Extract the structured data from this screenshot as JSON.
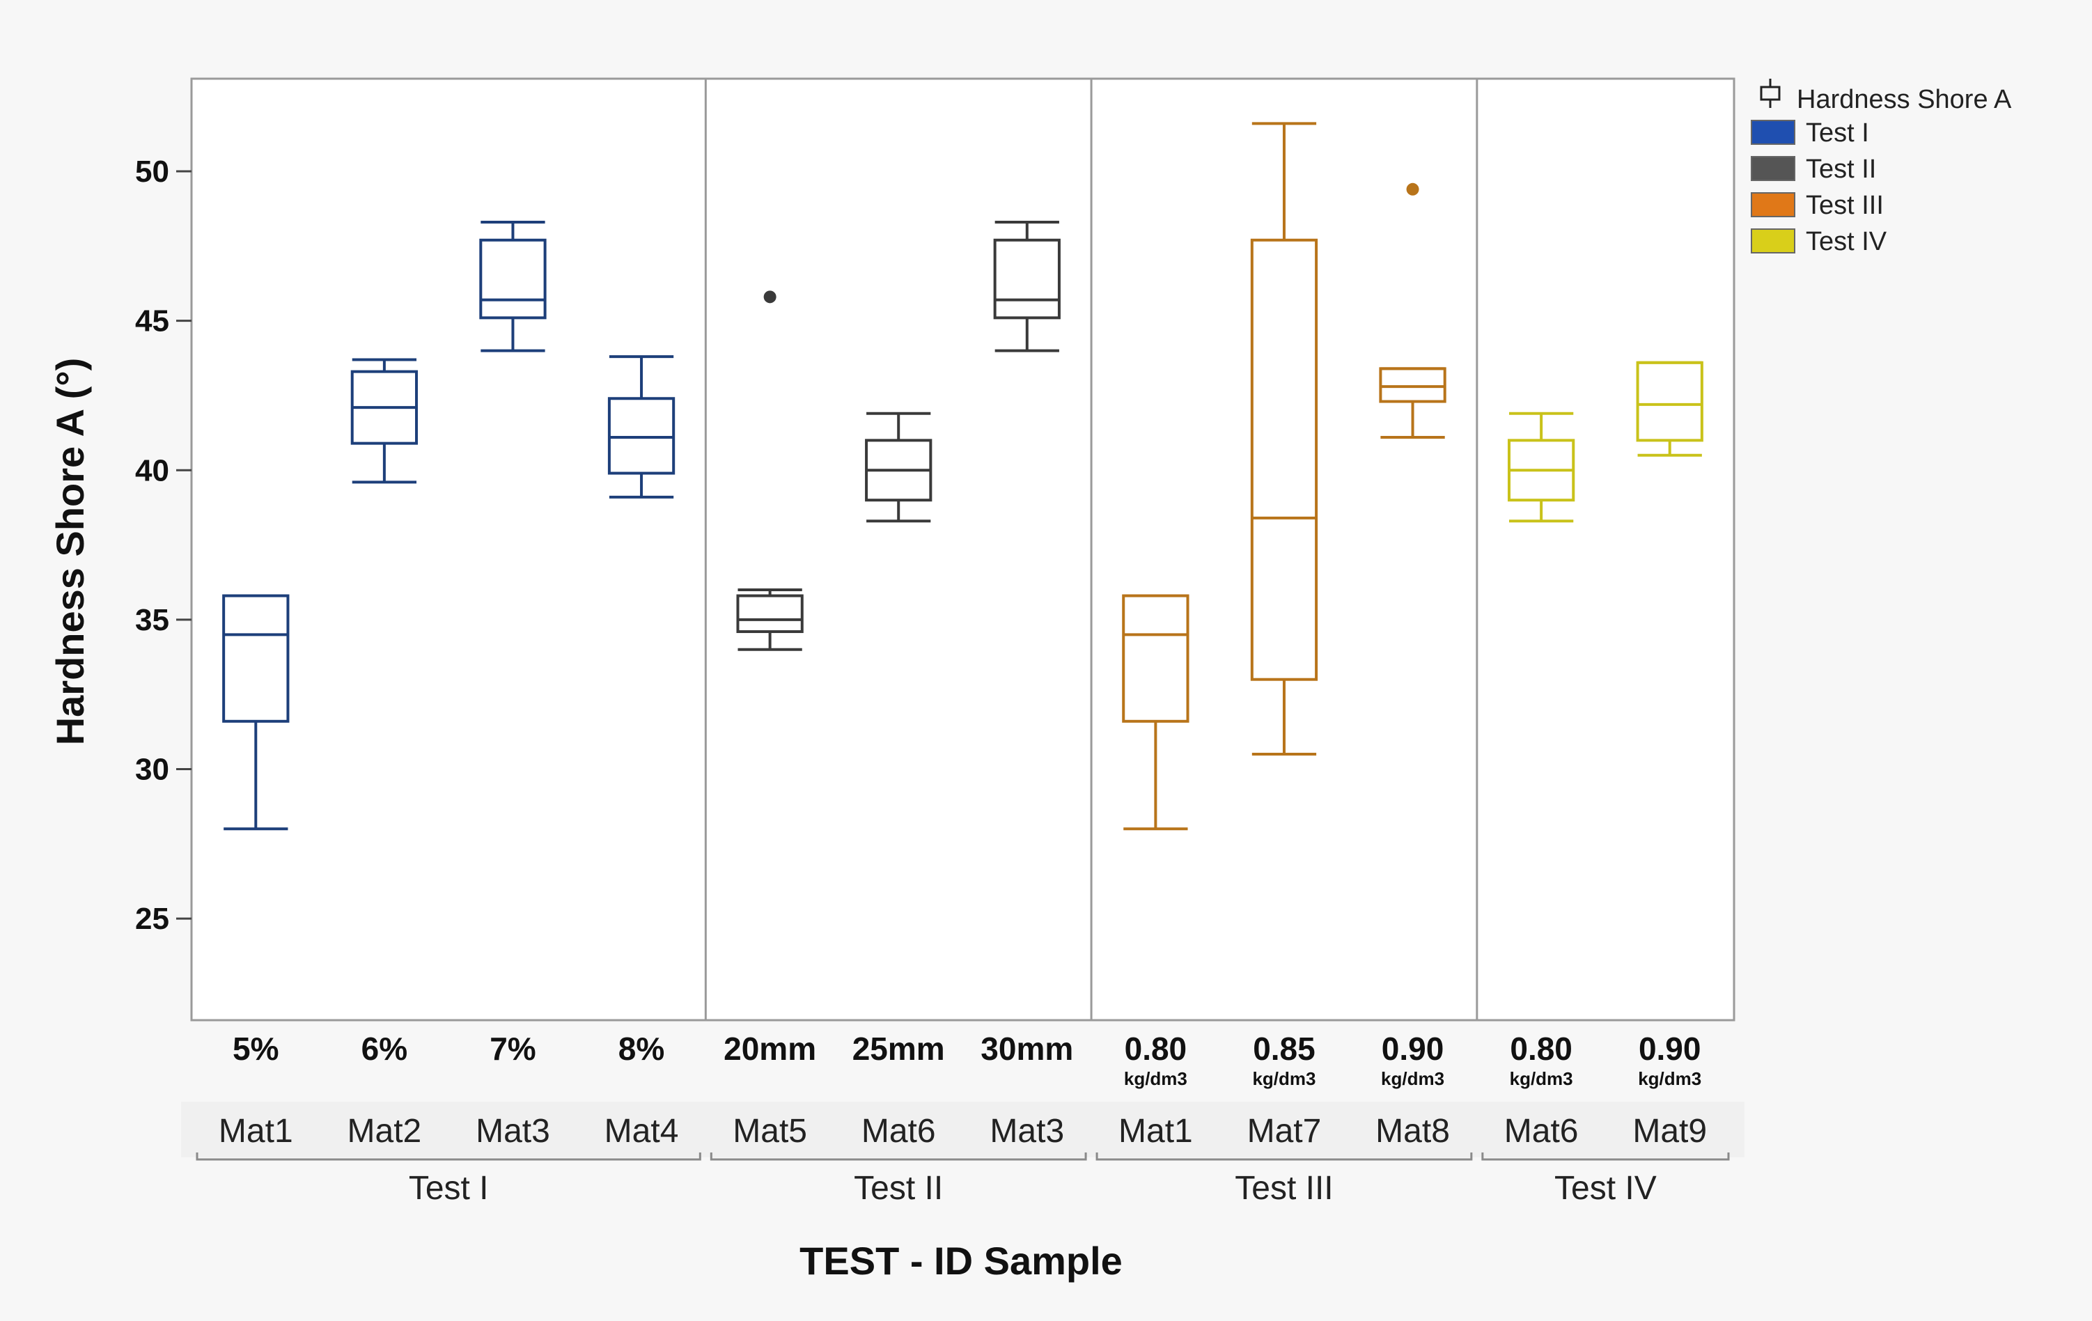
{
  "chart_data": {
    "type": "boxplot",
    "title": "",
    "ylabel": "Hardness Shore A (°)",
    "xlabel": "TEST - ID Sample",
    "ylim": [
      21.6,
      53.1
    ],
    "yticks": [
      25,
      30,
      35,
      40,
      45,
      50
    ],
    "legend_title": "Hardness Shore A",
    "series": [
      {
        "name": "Test I",
        "color": "#1d3f7a",
        "legend_color": "#1f4fb0"
      },
      {
        "name": "Test II",
        "color": "#3a3a3a",
        "legend_color": "#555555"
      },
      {
        "name": "Test III",
        "color": "#b8741a",
        "legend_color": "#e07818"
      },
      {
        "name": "Test IV",
        "color": "#c9c21a",
        "legend_color": "#d9cf1a"
      }
    ],
    "groups": [
      {
        "name": "Test I",
        "series_index": 0,
        "boxes": [
          {
            "condition": "5%",
            "unit": "",
            "sample": "Mat1",
            "min": 28.0,
            "q1": 31.6,
            "median": 34.5,
            "q3": 35.8,
            "max": 35.8,
            "outliers": []
          },
          {
            "condition": "6%",
            "unit": "",
            "sample": "Mat2",
            "min": 39.6,
            "q1": 40.9,
            "median": 42.1,
            "q3": 43.3,
            "max": 43.7,
            "outliers": []
          },
          {
            "condition": "7%",
            "unit": "",
            "sample": "Mat3",
            "min": 44.0,
            "q1": 45.1,
            "median": 45.7,
            "q3": 47.7,
            "max": 48.3,
            "outliers": []
          },
          {
            "condition": "8%",
            "unit": "",
            "sample": "Mat4",
            "min": 39.1,
            "q1": 39.9,
            "median": 41.1,
            "q3": 42.4,
            "max": 43.8,
            "outliers": []
          }
        ]
      },
      {
        "name": "Test II",
        "series_index": 1,
        "boxes": [
          {
            "condition": "20mm",
            "unit": "",
            "sample": "Mat5",
            "min": 34.0,
            "q1": 34.6,
            "median": 35.0,
            "q3": 35.8,
            "max": 36.0,
            "outliers": [
              45.8
            ]
          },
          {
            "condition": "25mm",
            "unit": "",
            "sample": "Mat6",
            "min": 38.3,
            "q1": 39.0,
            "median": 40.0,
            "q3": 41.0,
            "max": 41.9,
            "outliers": []
          },
          {
            "condition": "30mm",
            "unit": "",
            "sample": "Mat3",
            "min": 44.0,
            "q1": 45.1,
            "median": 45.7,
            "q3": 47.7,
            "max": 48.3,
            "outliers": []
          }
        ]
      },
      {
        "name": "Test III",
        "series_index": 2,
        "boxes": [
          {
            "condition": "0.80",
            "unit": "kg/dm3",
            "sample": "Mat1",
            "min": 28.0,
            "q1": 31.6,
            "median": 34.5,
            "q3": 35.8,
            "max": 35.8,
            "outliers": []
          },
          {
            "condition": "0.85",
            "unit": "kg/dm3",
            "sample": "Mat7",
            "min": 30.5,
            "q1": 33.0,
            "median": 38.4,
            "q3": 47.7,
            "max": 51.6,
            "outliers": []
          },
          {
            "condition": "0.90",
            "unit": "kg/dm3",
            "sample": "Mat8",
            "min": 41.1,
            "q1": 42.3,
            "median": 42.8,
            "q3": 43.4,
            "max": 43.4,
            "outliers": [
              49.4
            ]
          }
        ]
      },
      {
        "name": "Test IV",
        "series_index": 3,
        "boxes": [
          {
            "condition": "0.80",
            "unit": "kg/dm3",
            "sample": "Mat6",
            "min": 38.3,
            "q1": 39.0,
            "median": 40.0,
            "q3": 41.0,
            "max": 41.9,
            "outliers": []
          },
          {
            "condition": "0.90",
            "unit": "kg/dm3",
            "sample": "Mat9",
            "min": 40.5,
            "q1": 41.0,
            "median": 42.2,
            "q3": 43.6,
            "max": 43.6,
            "outliers": []
          }
        ]
      }
    ]
  }
}
